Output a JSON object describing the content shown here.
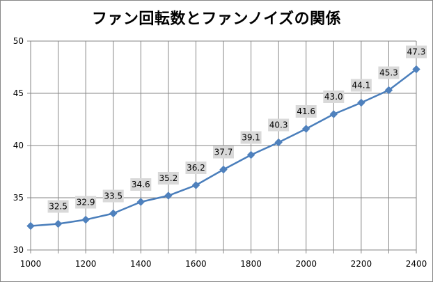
{
  "chart_data": {
    "type": "line",
    "title": "ファン回転数とファンノイズの関係",
    "xlabel": "",
    "ylabel": "",
    "x": [
      1000,
      1100,
      1200,
      1300,
      1400,
      1500,
      1600,
      1700,
      1800,
      1900,
      2000,
      2100,
      2200,
      2300,
      2400
    ],
    "series": [
      {
        "name": "ファンノイズ",
        "values": [
          32.3,
          32.5,
          32.9,
          33.5,
          34.6,
          35.2,
          36.2,
          37.7,
          39.1,
          40.3,
          41.6,
          43.0,
          44.1,
          45.3,
          47.3
        ],
        "data_labels": [
          "",
          "32.5",
          "32.9",
          "33.5",
          "34.6",
          "35.2",
          "36.2",
          "37.7",
          "39.1",
          "40.3",
          "41.6",
          "43.0",
          "44.1",
          "45.3",
          "47.3"
        ]
      }
    ],
    "xlim": [
      1000,
      2400
    ],
    "ylim": [
      30,
      50
    ],
    "x_ticks": [
      "1000",
      "1200",
      "1400",
      "1600",
      "1800",
      "2000",
      "2200",
      "2400"
    ],
    "x_tick_values": [
      1000,
      1200,
      1400,
      1600,
      1800,
      2000,
      2200,
      2400
    ],
    "y_ticks": [
      "30",
      "35",
      "40",
      "45",
      "50"
    ],
    "y_tick_values": [
      30,
      35,
      40,
      45,
      50
    ],
    "grid": true,
    "legend": "none",
    "colors": {
      "line": "#4a7ebb",
      "marker": "#4f81bd",
      "grid": "#868686",
      "label_bg": "#d9d9d9"
    }
  }
}
